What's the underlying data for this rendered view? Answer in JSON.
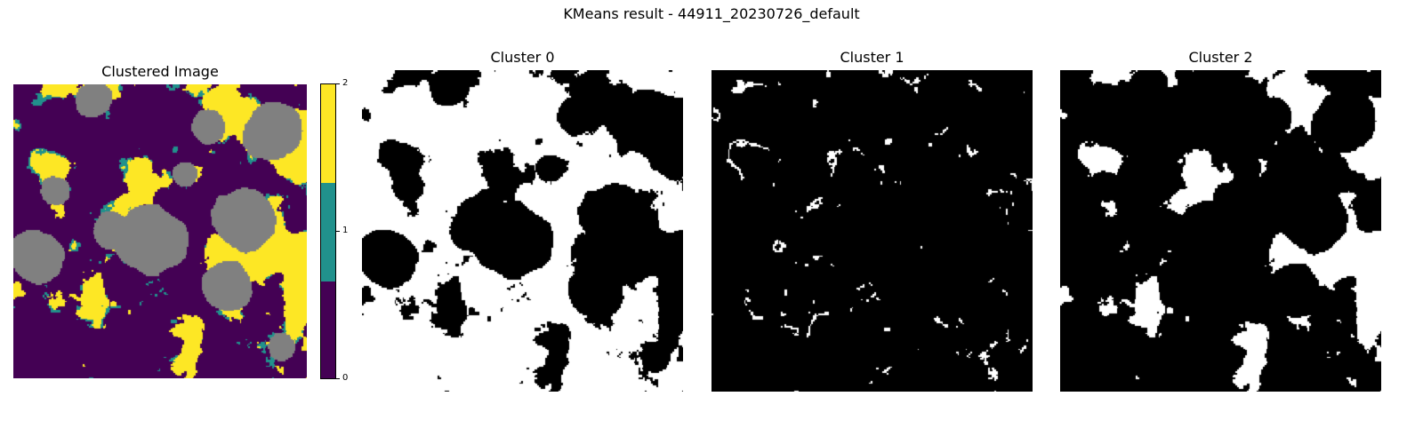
{
  "figure": {
    "suptitle": "KMeans result - 44911_20230726_default"
  },
  "panels": [
    {
      "title": "Clustered Image",
      "kind": "labels"
    },
    {
      "title": "Cluster 0",
      "kind": "mask",
      "cluster": 0
    },
    {
      "title": "Cluster 1",
      "kind": "mask",
      "cluster": 1
    },
    {
      "title": "Cluster 2",
      "kind": "mask",
      "cluster": 2
    }
  ],
  "colorbar": {
    "ticks": [
      "0",
      "1",
      "2"
    ],
    "colors": [
      "#440154",
      "#21918c",
      "#fde725"
    ]
  },
  "colors": {
    "cloud": "#808080",
    "mask_on": "#ffffff",
    "mask_off": "#000000"
  },
  "chart_data": {
    "type": "heatmap",
    "title": "KMeans result - 44911_20230726_default",
    "subplots": [
      "Clustered Image",
      "Cluster 0",
      "Cluster 1",
      "Cluster 2"
    ],
    "clusters": [
      0,
      1,
      2
    ],
    "colorbar_range": [
      0,
      2
    ],
    "colorbar_ticks": [
      0,
      1,
      2
    ],
    "colormap": "viridis",
    "cluster_colors": {
      "0": "#440154",
      "1": "#21918c",
      "2": "#fde725"
    },
    "masked_color": "#808080",
    "mask_colors": {
      "in_cluster": "#ffffff",
      "not_in_cluster": "#000000"
    },
    "axes": "off",
    "grid": false
  }
}
